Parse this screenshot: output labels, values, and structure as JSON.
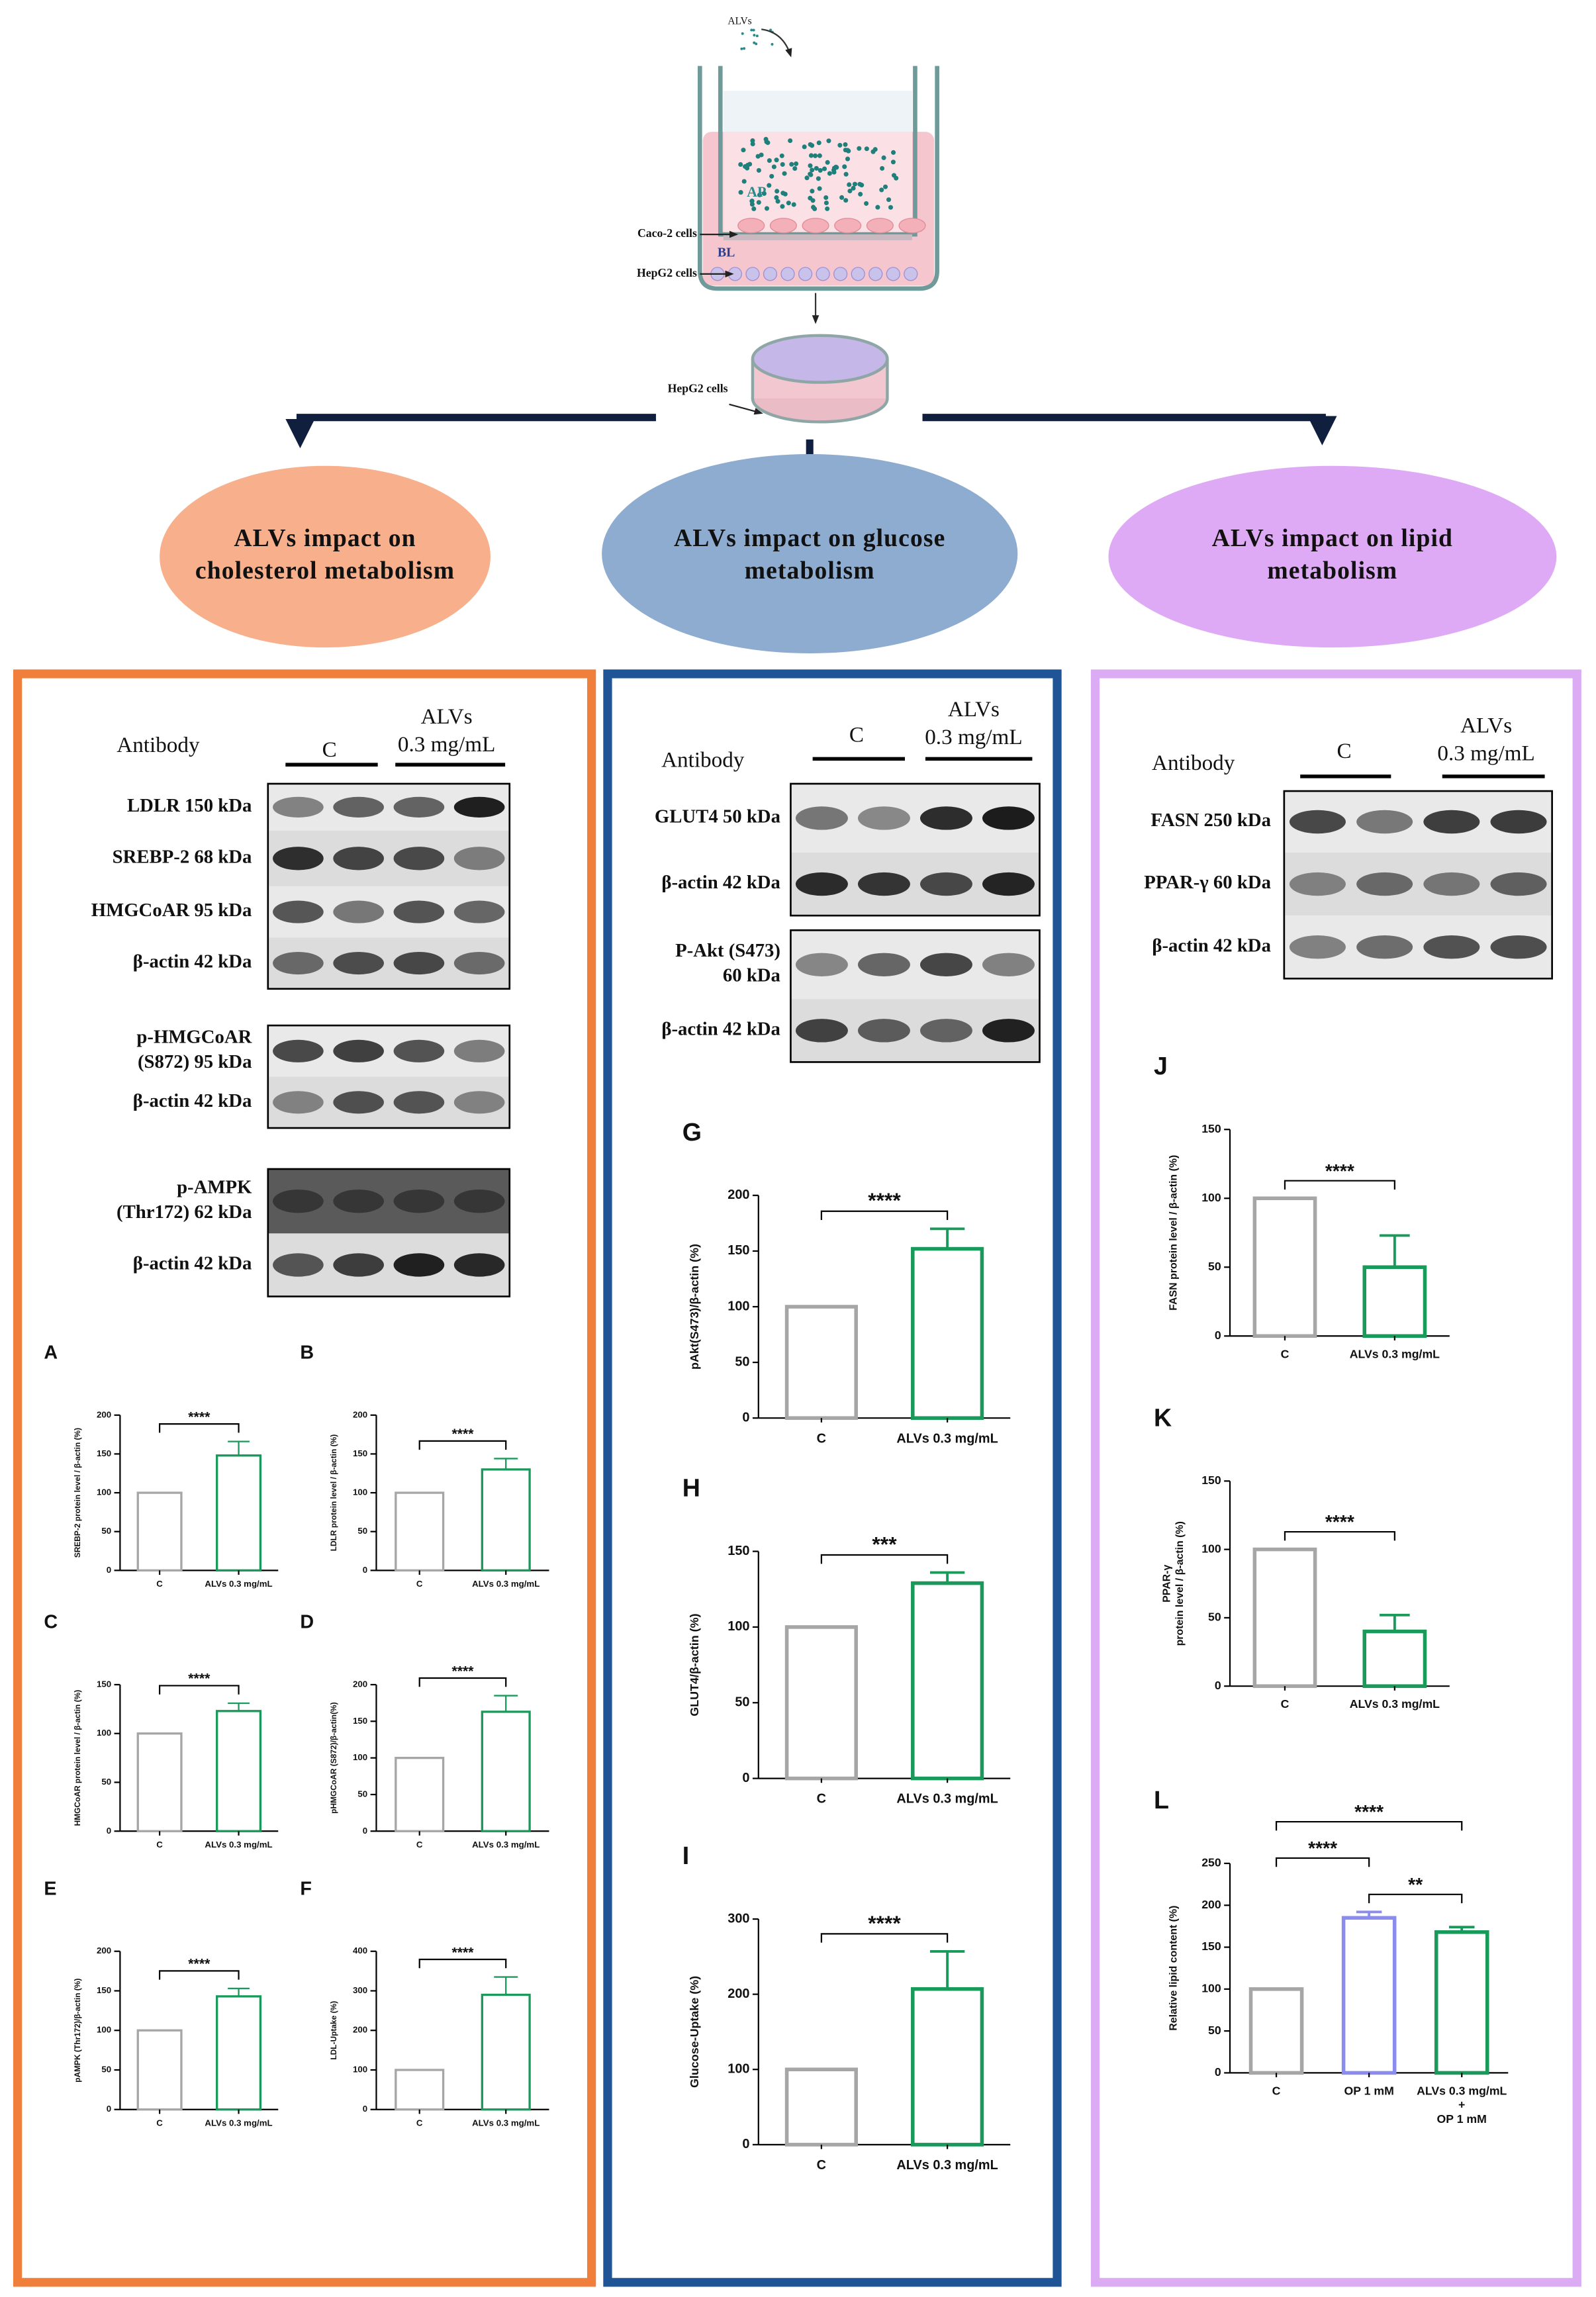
{
  "diagram": {
    "treatment_label": "ALVs",
    "apical_label": "AP",
    "caco2_label": "Caco-2 cells",
    "basolateral_label": "BL",
    "hepg2_insert_label": "HepG2 cells",
    "hepg2_dish_label": "HepG2 cells",
    "branches": [
      [
        "ALVs impact on",
        "cholesterol metabolism"
      ],
      [
        "ALVs impact on glucose",
        "metabolism"
      ],
      [
        "ALVs impact on lipid",
        "metabolism"
      ]
    ]
  },
  "blots": [
    {
      "header": {
        "antibody": "Antibody",
        "control": "C",
        "treatment": [
          "ALVs",
          "0.3 mg/mL"
        ]
      },
      "groups": [
        [
          "LDLR  150 kDa",
          "SREBP-2 68 kDa",
          "HMGCoAR 95 kDa",
          "β-actin 42 kDa"
        ],
        [
          [
            "p-HMGCoAR",
            "(S872) 95 kDa"
          ],
          "β-actin 42 kDa"
        ],
        [
          [
            "p-AMPK",
            "(Thr172) 62 kDa"
          ],
          "β-actin 42 kDa"
        ]
      ]
    },
    {
      "header": {
        "antibody": "Antibody",
        "control": "C",
        "treatment": [
          "ALVs",
          "0.3 mg/mL"
        ]
      },
      "groups": [
        [
          "GLUT4 50 kDa",
          "β-actin 42 kDa"
        ],
        [
          [
            "P-Akt (S473)",
            "60 kDa"
          ],
          "β-actin 42 kDa"
        ]
      ]
    },
    {
      "header": {
        "antibody": "Antibody",
        "control": "C",
        "treatment": [
          "ALVs",
          "0.3 mg/mL"
        ]
      },
      "groups": [
        [
          "FASN 250 kDa",
          "PPAR-γ 60 kDa",
          "β-actin 42 kDa"
        ]
      ]
    }
  ],
  "chart_data": [
    {
      "type": "bar",
      "panel_label": "A",
      "ylabel": "SREBP-2 protein level / β-actin (%)",
      "categories": [
        "C",
        "ALVs 0.3 mg/mL"
      ],
      "values": [
        100,
        148
      ],
      "errors": [
        null,
        18
      ],
      "colors": [
        "#a6a6a6",
        "#1a9a5a"
      ],
      "ylim": [
        0,
        200
      ],
      "yticks": [
        0,
        50,
        100,
        150,
        200
      ],
      "comparisons": [
        {
          "pair": [
            0,
            1
          ],
          "label": "****"
        }
      ]
    },
    {
      "type": "bar",
      "panel_label": "B",
      "ylabel": "LDLR protein level / β-actin (%)",
      "categories": [
        "C",
        "ALVs 0.3 mg/mL"
      ],
      "values": [
        100,
        130
      ],
      "errors": [
        null,
        14
      ],
      "colors": [
        "#a6a6a6",
        "#1a9a5a"
      ],
      "ylim": [
        0,
        200
      ],
      "yticks": [
        0,
        50,
        100,
        150,
        200
      ],
      "comparisons": [
        {
          "pair": [
            0,
            1
          ],
          "label": "****"
        }
      ]
    },
    {
      "type": "bar",
      "panel_label": "C",
      "ylabel": "HMGCoAR protein level / β-actin (%)",
      "categories": [
        "C",
        "ALVs 0.3 mg/mL"
      ],
      "values": [
        100,
        123
      ],
      "errors": [
        null,
        8
      ],
      "colors": [
        "#a6a6a6",
        "#1a9a5a"
      ],
      "ylim": [
        0,
        150
      ],
      "yticks": [
        0,
        50,
        100,
        150
      ],
      "comparisons": [
        {
          "pair": [
            0,
            1
          ],
          "label": "****"
        }
      ]
    },
    {
      "type": "bar",
      "panel_label": "D",
      "ylabel": "pHMGCoAR (S872)/β-actin(%)",
      "categories": [
        "C",
        "ALVs 0.3 mg/mL"
      ],
      "values": [
        100,
        163
      ],
      "errors": [
        null,
        22
      ],
      "colors": [
        "#a6a6a6",
        "#1a9a5a"
      ],
      "ylim": [
        0,
        200
      ],
      "yticks": [
        0,
        50,
        100,
        150,
        200
      ],
      "comparisons": [
        {
          "pair": [
            0,
            1
          ],
          "label": "****"
        }
      ]
    },
    {
      "type": "bar",
      "panel_label": "E",
      "ylabel": "pAMPK (Thr172)/β-actin (%)",
      "categories": [
        "C",
        "ALVs 0.3 mg/mL"
      ],
      "values": [
        100,
        143
      ],
      "errors": [
        null,
        10
      ],
      "colors": [
        "#a6a6a6",
        "#1a9a5a"
      ],
      "ylim": [
        0,
        200
      ],
      "yticks": [
        0,
        50,
        100,
        150,
        200
      ],
      "comparisons": [
        {
          "pair": [
            0,
            1
          ],
          "label": "****"
        }
      ]
    },
    {
      "type": "bar",
      "panel_label": "F",
      "ylabel": "LDL-Uptake (%)",
      "categories": [
        "C",
        "ALVs 0.3 mg/mL"
      ],
      "values": [
        100,
        290
      ],
      "errors": [
        null,
        45
      ],
      "colors": [
        "#a6a6a6",
        "#1a9a5a"
      ],
      "ylim": [
        0,
        400
      ],
      "yticks": [
        0,
        100,
        200,
        300,
        400
      ],
      "comparisons": [
        {
          "pair": [
            0,
            1
          ],
          "label": "****"
        }
      ]
    },
    {
      "type": "bar",
      "panel_label": "G",
      "ylabel": "pAkt(S473)/β-actin (%)",
      "categories": [
        "C",
        "ALVs 0.3 mg/mL"
      ],
      "values": [
        100,
        152
      ],
      "errors": [
        null,
        18
      ],
      "colors": [
        "#a6a6a6",
        "#1a9a5a"
      ],
      "ylim": [
        0,
        200
      ],
      "yticks": [
        0,
        50,
        100,
        150,
        200
      ],
      "comparisons": [
        {
          "pair": [
            0,
            1
          ],
          "label": "****"
        }
      ]
    },
    {
      "type": "bar",
      "panel_label": "H",
      "ylabel": "GLUT4/β-actin (%)",
      "categories": [
        "C",
        "ALVs 0.3 mg/mL"
      ],
      "values": [
        100,
        129
      ],
      "errors": [
        null,
        7
      ],
      "colors": [
        "#a6a6a6",
        "#1a9a5a"
      ],
      "ylim": [
        0,
        150
      ],
      "yticks": [
        0,
        50,
        100,
        150
      ],
      "comparisons": [
        {
          "pair": [
            0,
            1
          ],
          "label": "***"
        }
      ]
    },
    {
      "type": "bar",
      "panel_label": "I",
      "ylabel": "Glucose-Uptake (%)",
      "categories": [
        "C",
        "ALVs 0.3 mg/mL"
      ],
      "values": [
        100,
        207
      ],
      "errors": [
        null,
        50
      ],
      "colors": [
        "#a6a6a6",
        "#1a9a5a"
      ],
      "ylim": [
        0,
        300
      ],
      "yticks": [
        0,
        100,
        200,
        300
      ],
      "comparisons": [
        {
          "pair": [
            0,
            1
          ],
          "label": "****"
        }
      ]
    },
    {
      "type": "bar",
      "panel_label": "J",
      "ylabel": "FASN protein level / β-actin (%)",
      "categories": [
        "C",
        "ALVs 0.3 mg/mL"
      ],
      "values": [
        100,
        50
      ],
      "errors": [
        null,
        23
      ],
      "colors": [
        "#a6a6a6",
        "#1a9a5a"
      ],
      "ylim": [
        0,
        150
      ],
      "yticks": [
        0,
        50,
        100,
        150
      ],
      "comparisons": [
        {
          "pair": [
            0,
            1
          ],
          "label": "****"
        }
      ]
    },
    {
      "type": "bar",
      "panel_label": "K",
      "ylabel": [
        "PPAR-γ",
        "protein level / β-actin (%)"
      ],
      "categories": [
        "C",
        "ALVs 0.3 mg/mL"
      ],
      "values": [
        100,
        40
      ],
      "errors": [
        null,
        12
      ],
      "colors": [
        "#a6a6a6",
        "#1a9a5a"
      ],
      "ylim": [
        0,
        150
      ],
      "yticks": [
        0,
        50,
        100,
        150
      ],
      "comparisons": [
        {
          "pair": [
            0,
            1
          ],
          "label": "****"
        }
      ]
    },
    {
      "type": "bar",
      "panel_label": "L",
      "ylabel": "Relative lipid content (%)",
      "categories": [
        "C",
        "OP 1 mM",
        [
          "ALVs 0.3 mg/mL",
          "+",
          "OP 1 mM"
        ]
      ],
      "values": [
        100,
        185,
        168
      ],
      "errors": [
        null,
        7,
        6
      ],
      "colors": [
        "#a6a6a6",
        "#8a8cf0",
        "#1a9a5a"
      ],
      "ylim": [
        0,
        250
      ],
      "yticks": [
        0,
        50,
        100,
        150,
        200,
        250
      ],
      "comparisons": [
        {
          "pair": [
            1,
            2
          ],
          "label": "**"
        },
        {
          "pair": [
            0,
            1
          ],
          "label": "****"
        },
        {
          "pair": [
            0,
            2
          ],
          "label": "****"
        }
      ]
    }
  ]
}
